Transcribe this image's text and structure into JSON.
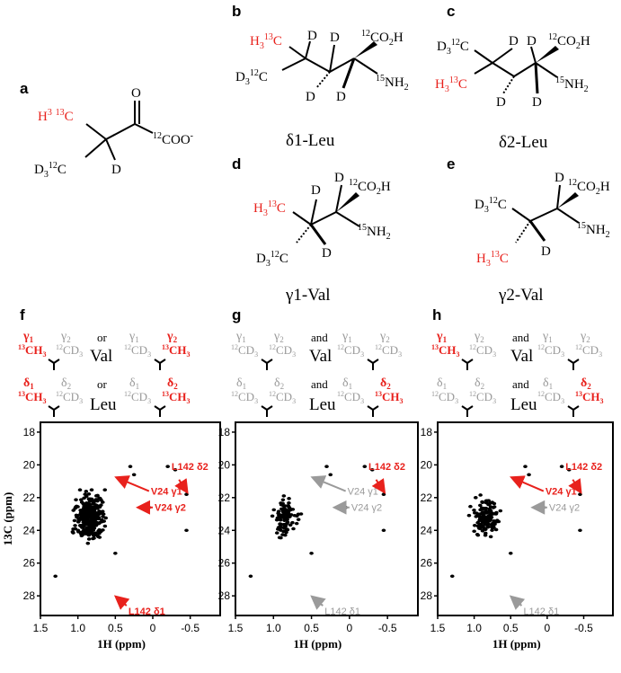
{
  "colors": {
    "red": "#e8211c",
    "gray": "#9a9a9a",
    "black": "#000000"
  },
  "structures": {
    "a": {
      "panel": "a"
    },
    "b": {
      "panel": "b",
      "name": "δ1-Leu"
    },
    "c": {
      "panel": "c",
      "name": "δ2-Leu"
    },
    "d": {
      "panel": "d",
      "name": "γ1-Val"
    },
    "e": {
      "panel": "e",
      "name": "γ2-Val"
    }
  },
  "labeling": {
    "f": {
      "panel": "f",
      "val_join": "or",
      "leu_join": "or",
      "val": "Val",
      "leu": "Leu"
    },
    "g": {
      "panel": "g",
      "val_join": "and",
      "leu_join": "and",
      "val": "Val",
      "leu": "Leu"
    },
    "h": {
      "panel": "h",
      "val_join": "and",
      "leu_join": "and",
      "val": "Val",
      "leu": "Leu"
    }
  },
  "chart_data": [
    {
      "type": "scatter",
      "panel": "f",
      "xlabel": "1H (ppm)",
      "ylabel": "13C (ppm)",
      "xlim": [
        1.5,
        -0.9
      ],
      "ylim": [
        29.2,
        17.4
      ],
      "xticks": [
        "1.5",
        "1.0",
        "0.5",
        "0",
        "-0.5"
      ],
      "yticks": [
        "18",
        "20",
        "22",
        "24",
        "26",
        "28"
      ],
      "annotations": [
        {
          "text": "V24 γ1",
          "color": "#e8211c",
          "x": 0.45,
          "y": 20.7
        },
        {
          "text": "V24 γ2",
          "color": "#e8211c",
          "x": 0.15,
          "y": 22.6
        },
        {
          "text": "L142 δ2",
          "color": "#e8211c",
          "x": -0.45,
          "y": 21.8
        },
        {
          "text": "L142 δ1",
          "color": "#e8211c",
          "x": 0.48,
          "y": 28.0
        }
      ]
    },
    {
      "type": "scatter",
      "panel": "g",
      "xlabel": "1H (ppm)",
      "ylabel": "",
      "xlim": [
        1.5,
        -0.9
      ],
      "ylim": [
        29.2,
        17.4
      ],
      "xticks": [
        "1.5",
        "1.0",
        "0.5",
        "0",
        "-0.5"
      ],
      "yticks": [
        "18",
        "20",
        "22",
        "24",
        "26",
        "28"
      ],
      "annotations": [
        {
          "text": "V24 γ1",
          "color": "#9a9a9a",
          "x": 0.45,
          "y": 20.7
        },
        {
          "text": "V24 γ2",
          "color": "#9a9a9a",
          "x": 0.15,
          "y": 22.6
        },
        {
          "text": "L142 δ2",
          "color": "#e8211c",
          "x": -0.45,
          "y": 21.8
        },
        {
          "text": "L142 δ1",
          "color": "#9a9a9a",
          "x": 0.48,
          "y": 28.0
        }
      ]
    },
    {
      "type": "scatter",
      "panel": "h",
      "xlabel": "1H (ppm)",
      "ylabel": "",
      "xlim": [
        1.5,
        -0.9
      ],
      "ylim": [
        29.2,
        17.4
      ],
      "xticks": [
        "1.5",
        "1.0",
        "0.5",
        "0",
        "-0.5"
      ],
      "yticks": [
        "18",
        "20",
        "22",
        "24",
        "26",
        "28"
      ],
      "annotations": [
        {
          "text": "V24 γ1",
          "color": "#e8211c",
          "x": 0.45,
          "y": 20.7
        },
        {
          "text": "V24 γ2",
          "color": "#9a9a9a",
          "x": 0.15,
          "y": 22.6
        },
        {
          "text": "L142 δ2",
          "color": "#e8211c",
          "x": -0.45,
          "y": 21.8
        },
        {
          "text": "L142 δ1",
          "color": "#9a9a9a",
          "x": 0.48,
          "y": 28.0
        }
      ]
    }
  ]
}
